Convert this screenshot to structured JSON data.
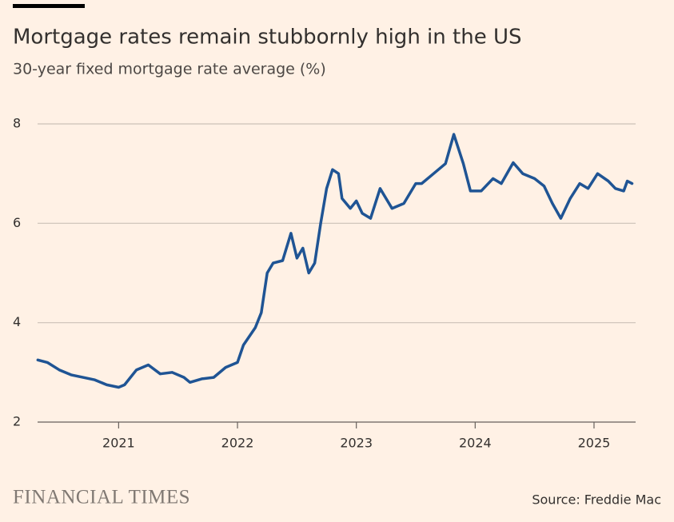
{
  "chart_data": {
    "type": "line",
    "title": "Mortgage rates remain stubbornly high in the US",
    "subtitle": "30-year fixed mortgage rate average (%)",
    "x": [
      2020.32,
      2020.4,
      2020.5,
      2020.6,
      2020.7,
      2020.8,
      2020.9,
      2021.0,
      2021.05,
      2021.15,
      2021.25,
      2021.35,
      2021.45,
      2021.55,
      2021.6,
      2021.7,
      2021.8,
      2021.9,
      2022.0,
      2022.05,
      2022.15,
      2022.2,
      2022.25,
      2022.3,
      2022.38,
      2022.45,
      2022.5,
      2022.55,
      2022.6,
      2022.65,
      2022.7,
      2022.75,
      2022.8,
      2022.85,
      2022.88,
      2022.95,
      2023.0,
      2023.05,
      2023.12,
      2023.2,
      2023.3,
      2023.4,
      2023.5,
      2023.55,
      2023.65,
      2023.75,
      2023.82,
      2023.9,
      2023.96,
      2024.05,
      2024.15,
      2024.22,
      2024.32,
      2024.4,
      2024.5,
      2024.58,
      2024.65,
      2024.72,
      2024.8,
      2024.88,
      2024.95,
      2025.03,
      2025.12,
      2025.18,
      2025.25,
      2025.28,
      2025.32
    ],
    "series": [
      {
        "name": "30-year fixed",
        "color": "#1f5494",
        "values": [
          3.25,
          3.2,
          3.05,
          2.95,
          2.9,
          2.85,
          2.75,
          2.7,
          2.75,
          3.05,
          3.15,
          2.97,
          3.0,
          2.9,
          2.8,
          2.87,
          2.9,
          3.1,
          3.2,
          3.55,
          3.9,
          4.2,
          5.0,
          5.2,
          5.25,
          5.8,
          5.3,
          5.5,
          5.0,
          5.2,
          6.0,
          6.7,
          7.08,
          7.0,
          6.5,
          6.3,
          6.45,
          6.2,
          6.1,
          6.7,
          6.3,
          6.4,
          6.8,
          6.8,
          7.0,
          7.2,
          7.79,
          7.2,
          6.65,
          6.65,
          6.9,
          6.8,
          7.22,
          7.0,
          6.9,
          6.75,
          6.4,
          6.1,
          6.5,
          6.8,
          6.7,
          7.0,
          6.85,
          6.7,
          6.65,
          6.85,
          6.8
        ]
      }
    ],
    "xlim": [
      2020.318,
      2025.35
    ],
    "xticks": [
      2021,
      2022,
      2023,
      2024,
      2025
    ],
    "ylim": [
      2,
      8
    ],
    "yticks": [
      2,
      4,
      6,
      8
    ],
    "grid": true
  },
  "footer": {
    "logo": "FINANCIAL TIMES",
    "source": "Source: Freddie Mac"
  }
}
